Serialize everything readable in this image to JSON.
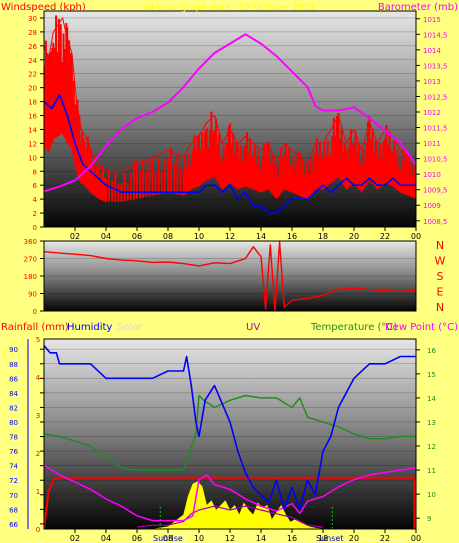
{
  "colors": {
    "background": "#ffff80",
    "wind": "#ff0000",
    "gust": "#0000ff",
    "barometer": "#ff00ff",
    "direction": "#ff0000",
    "humidity": "#0000ff",
    "temperature": "#228b22",
    "dewpoint": "#ff00ff",
    "rain": "#ff0000",
    "solar": "#ffff00",
    "uv": "#aa00aa"
  },
  "chart_data": [
    {
      "type": "line",
      "title": "24 hour graph data - 17 October 2021",
      "ylabel": "Windspeed (kph)",
      "y2label": "Barometer (mb)",
      "x_ticks": [
        "02",
        "04",
        "06",
        "08",
        "10",
        "12",
        "14",
        "16",
        "18",
        "20",
        "22",
        "00"
      ],
      "ylim": [
        0,
        31
      ],
      "y_ticks": [
        "0",
        "2",
        "4",
        "6",
        "8",
        "10",
        "12",
        "14",
        "16",
        "18",
        "20",
        "22",
        "24",
        "26",
        "28",
        "30"
      ],
      "y2lim": [
        1008.3,
        1015.25
      ],
      "y2_ticks": [
        "1008,5",
        "1009",
        "1009,5",
        "1010",
        "1010,5",
        "1011",
        "1011,5",
        "1012",
        "1012,5",
        "1013",
        "1013,5",
        "1014",
        "1014,5",
        "1015"
      ],
      "series": [
        {
          "role": "gust",
          "x": [
            0,
            0.3,
            0.6,
            0.9,
            1.2,
            1.5,
            1.8,
            2.1,
            2.4,
            2.7,
            3,
            3.5,
            4,
            5,
            6,
            7,
            8,
            9,
            9.5,
            10,
            10.5,
            11,
            11.5,
            12,
            12.5,
            13,
            13.5,
            14,
            14.5,
            15,
            15.5,
            16,
            16.5,
            17,
            17.5,
            18,
            18.5,
            19,
            19.5,
            20,
            20.5,
            21,
            21.5,
            22,
            22.5,
            23,
            23.5,
            24
          ],
          "y": [
            26,
            24,
            28,
            29,
            30,
            27,
            25,
            18,
            14,
            13,
            11,
            9,
            8,
            8,
            9,
            10,
            11,
            10,
            12,
            13,
            15,
            16,
            12,
            14,
            12,
            13,
            12,
            11,
            12,
            9,
            12,
            11,
            10,
            9,
            12,
            12,
            14,
            16,
            12,
            14,
            11,
            15,
            12,
            14,
            13,
            11,
            10,
            9
          ]
        },
        {
          "role": "speed",
          "x": [
            0,
            0.5,
            1,
            1.5,
            2,
            2.5,
            3,
            3.5,
            4,
            5,
            6,
            7,
            8,
            9,
            10,
            10.5,
            11,
            11.5,
            12,
            12.5,
            13,
            13.5,
            14,
            14.5,
            15,
            15.5,
            16,
            16.5,
            17,
            17.5,
            18,
            18.5,
            19,
            19.5,
            20,
            20.5,
            21,
            21.5,
            22,
            22.5,
            23,
            23.5,
            24
          ],
          "y": [
            18,
            17,
            19,
            16,
            12,
            9,
            8,
            7,
            6,
            5,
            5,
            5,
            5,
            5,
            5,
            6,
            6,
            5,
            6,
            4,
            5,
            3,
            3,
            2,
            2,
            3,
            4,
            4,
            4,
            5,
            6,
            5,
            6,
            7,
            6,
            6,
            7,
            6,
            6,
            7,
            6,
            6,
            6
          ]
        },
        {
          "role": "barometer",
          "x": [
            0,
            1,
            2,
            3,
            4,
            5,
            6,
            7,
            8,
            9,
            10,
            11,
            12,
            13,
            14,
            15,
            16,
            17,
            17.5,
            18,
            19,
            20,
            21,
            22,
            23,
            24
          ],
          "y": [
            1009.45,
            1009.6,
            1009.8,
            1010.25,
            1010.9,
            1011.45,
            1011.8,
            1012.0,
            1012.3,
            1012.8,
            1013.4,
            1013.9,
            1014.2,
            1014.5,
            1014.2,
            1013.8,
            1013.3,
            1012.8,
            1012.2,
            1012.05,
            1012.05,
            1012.15,
            1011.8,
            1011.4,
            1011.0,
            1010.3
          ]
        }
      ]
    },
    {
      "type": "line",
      "ylabel": "",
      "ylim": [
        0,
        360
      ],
      "y_ticks": [
        "0",
        "90",
        "180",
        "270",
        "360"
      ],
      "right_labels": [
        "N",
        "W",
        "S",
        "E",
        "N"
      ],
      "series": [
        {
          "role": "direction",
          "x": [
            0,
            1,
            2,
            3,
            4,
            5,
            6,
            7,
            8,
            9,
            10,
            11,
            12,
            13,
            13.5,
            14,
            14.3,
            14.6,
            14.9,
            15.2,
            15.5,
            16,
            17,
            18,
            19,
            20,
            21,
            22,
            23,
            24
          ],
          "y": [
            305,
            298,
            292,
            285,
            270,
            262,
            258,
            250,
            252,
            244,
            232,
            248,
            244,
            270,
            330,
            280,
            10,
            340,
            0,
            355,
            20,
            55,
            65,
            80,
            112,
            118,
            110,
            105,
            100,
            108
          ]
        }
      ]
    },
    {
      "type": "line",
      "x_ticks": [
        "02",
        "04",
        "06",
        "08",
        "10",
        "12",
        "14",
        "16",
        "18",
        "20",
        "22",
        "00"
      ],
      "legend": [
        "Rainfall (mm)",
        "Humidity",
        "Solar",
        "UV",
        "Temperature (°C)",
        "Dew Point (°C)"
      ],
      "annotations": [
        "Sunrise",
        "Sunset"
      ],
      "hum_lim": [
        65.3,
        91.4
      ],
      "hum_ticks": [
        "66",
        "68",
        "70",
        "72",
        "74",
        "76",
        "78",
        "80",
        "82",
        "84",
        "86",
        "88",
        "90"
      ],
      "temp_lim": [
        8.55,
        16.45
      ],
      "temp_ticks": [
        "9",
        "10",
        "11",
        "12",
        "13",
        "14",
        "15",
        "16"
      ],
      "rain_lim": [
        0,
        5
      ],
      "rain_ticks": [
        "0",
        "1",
        "2",
        "3",
        "4",
        "5"
      ],
      "series": [
        {
          "role": "humidity",
          "x": [
            0,
            0.4,
            0.8,
            1,
            2,
            3,
            4,
            5,
            6,
            7,
            8,
            9,
            9.2,
            9.5,
            9.8,
            10,
            10.4,
            11,
            12,
            12.5,
            13,
            13.5,
            14,
            14.5,
            15,
            15.5,
            16,
            16.5,
            17,
            17.5,
            18,
            18.5,
            19,
            20,
            21,
            22,
            23,
            24
          ],
          "y": [
            90.5,
            89.5,
            89.5,
            88,
            88,
            88,
            86,
            86,
            86,
            86,
            87,
            87,
            89,
            85,
            80,
            78,
            83,
            85,
            80,
            76,
            73,
            71,
            70,
            69,
            72,
            68,
            71,
            68,
            72,
            70,
            76,
            78,
            82,
            86,
            88,
            88,
            89,
            89
          ]
        },
        {
          "role": "temperature",
          "x": [
            0,
            1,
            2,
            3,
            4,
            5,
            6,
            7,
            8,
            9,
            9.8,
            10,
            10.3,
            11,
            12,
            13,
            14,
            15,
            16,
            16.5,
            17,
            18,
            19,
            20,
            21,
            22,
            23,
            24
          ],
          "y": [
            12.5,
            12.4,
            12.2,
            12,
            11.5,
            11.1,
            11,
            11,
            11,
            11,
            12.5,
            14.1,
            13.9,
            13.6,
            13.9,
            14.1,
            14.0,
            14.0,
            13.6,
            14.0,
            13.2,
            13.0,
            12.8,
            12.5,
            12.3,
            12.3,
            12.4,
            12.4
          ]
        },
        {
          "role": "dewpoint",
          "x": [
            0,
            1,
            2,
            3,
            4,
            5,
            6,
            7,
            8,
            9,
            9.6,
            10,
            10.5,
            11,
            12,
            13,
            14,
            15,
            16,
            16.5,
            17,
            18,
            19,
            20,
            21,
            22,
            23,
            24
          ],
          "y": [
            11.2,
            10.8,
            10.5,
            10.2,
            9.8,
            9.5,
            9.1,
            8.9,
            8.9,
            8.9,
            9.1,
            10.6,
            10.8,
            10.4,
            10.2,
            9.8,
            9.5,
            9.3,
            9.6,
            9.2,
            9.7,
            9.9,
            10.3,
            10.6,
            10.8,
            10.9,
            11.0,
            11.1
          ]
        },
        {
          "role": "rain",
          "x": [
            0,
            0.3,
            0.6,
            1,
            6,
            12,
            18,
            23.9
          ],
          "y": [
            0,
            1,
            1.3,
            1.35,
            1.35,
            1.35,
            1.35,
            1.35
          ]
        },
        {
          "role": "uv",
          "x": [
            6,
            7,
            8,
            9,
            9.5,
            10,
            11,
            12,
            13,
            14,
            15,
            16,
            17,
            18
          ],
          "y": [
            0.05,
            0.1,
            0.1,
            0.2,
            0.4,
            0.5,
            0.6,
            0.5,
            0.6,
            0.5,
            0.4,
            0.3,
            0.1,
            0.05
          ]
        },
        {
          "role": "solar",
          "x": [
            7,
            8,
            9,
            9.3,
            9.6,
            9.9,
            10.2,
            10.5,
            10.8,
            11.1,
            11.4,
            11.7,
            12,
            12.3,
            12.6,
            12.9,
            13.2,
            13.5,
            13.8,
            14.1,
            14.4,
            14.7,
            15,
            15.3,
            15.6,
            15.9,
            16.2,
            16.5,
            16.8,
            17.1,
            17.5,
            18
          ],
          "y": [
            0,
            0.05,
            0.3,
            0.7,
            0.95,
            1.0,
            0.9,
            0.5,
            0.6,
            0.4,
            0.5,
            0.6,
            0.4,
            0.5,
            0.3,
            0.55,
            0.4,
            0.3,
            0.55,
            0.45,
            0.5,
            0.2,
            0.35,
            0.5,
            0.3,
            0.15,
            0.2,
            0.15,
            0.1,
            0.05,
            0.02,
            0
          ]
        }
      ]
    }
  ]
}
